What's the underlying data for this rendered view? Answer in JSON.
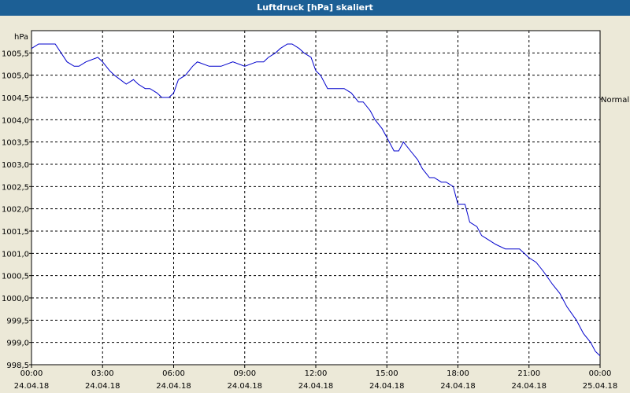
{
  "window": {
    "title": "Luftdruck [hPa] skaliert"
  },
  "colors": {
    "titlebar": "#1c5f95",
    "line": "#0000cc",
    "plot_bg": "#ffffff",
    "window_bg": "#ece9d8",
    "grid": "#000000"
  },
  "chart_data": {
    "type": "line",
    "title": "Luftdruck [hPa] skaliert",
    "ylabel": "hPa",
    "xlabel": "",
    "ylim": [
      998.5,
      1006.0
    ],
    "xlim": [
      0,
      24
    ],
    "grid": true,
    "annotation_right": "Normal",
    "y_ticks": [
      "1005,5",
      "1005,0",
      "1004,5",
      "1004,0",
      "1003,5",
      "1003,0",
      "1002,5",
      "1002,0",
      "1001,5",
      "1001,0",
      "1000,5",
      "1000,0",
      "999,5",
      "999,0",
      "998,5"
    ],
    "y_tick_values": [
      1005.5,
      1005.0,
      1004.5,
      1004.0,
      1003.5,
      1003.0,
      1002.5,
      1002.0,
      1001.5,
      1001.0,
      1000.5,
      1000.0,
      999.5,
      999.0,
      998.5
    ],
    "x_ticks": [
      {
        "time": "00:00",
        "date": "24.04.18",
        "hour": 0
      },
      {
        "time": "03:00",
        "date": "24.04.18",
        "hour": 3
      },
      {
        "time": "06:00",
        "date": "24.04.18",
        "hour": 6
      },
      {
        "time": "09:00",
        "date": "24.04.18",
        "hour": 9
      },
      {
        "time": "12:00",
        "date": "24.04.18",
        "hour": 12
      },
      {
        "time": "15:00",
        "date": "24.04.18",
        "hour": 15
      },
      {
        "time": "18:00",
        "date": "24.04.18",
        "hour": 18
      },
      {
        "time": "21:00",
        "date": "24.04.18",
        "hour": 21
      },
      {
        "time": "00:00",
        "date": "25.04.18",
        "hour": 24
      }
    ],
    "x": [
      0,
      0.3,
      0.6,
      0.8,
      1.0,
      1.5,
      1.8,
      2.0,
      2.3,
      2.8,
      3.0,
      3.3,
      3.5,
      4.0,
      4.3,
      4.5,
      4.8,
      5.0,
      5.3,
      5.5,
      5.8,
      6.0,
      6.2,
      6.5,
      6.8,
      7.0,
      7.5,
      8.0,
      8.5,
      9.0,
      9.5,
      9.8,
      10.0,
      10.3,
      10.5,
      10.8,
      11.0,
      11.3,
      11.5,
      11.8,
      12.0,
      12.2,
      12.5,
      12.8,
      13.2,
      13.5,
      13.8,
      14.0,
      14.3,
      14.5,
      14.8,
      15.0,
      15.3,
      15.5,
      15.7,
      16.0,
      16.3,
      16.5,
      16.8,
      17.0,
      17.3,
      17.5,
      17.8,
      18.0,
      18.3,
      18.5,
      18.8,
      19.0,
      19.3,
      19.6,
      20.0,
      20.3,
      20.6,
      21.0,
      21.3,
      21.6,
      22.0,
      22.3,
      22.6,
      23.0,
      23.3,
      23.6,
      23.8,
      24.0
    ],
    "y": [
      1005.6,
      1005.7,
      1005.7,
      1005.7,
      1005.7,
      1005.3,
      1005.2,
      1005.2,
      1005.3,
      1005.4,
      1005.3,
      1005.1,
      1005.0,
      1004.8,
      1004.9,
      1004.8,
      1004.7,
      1004.7,
      1004.6,
      1004.5,
      1004.5,
      1004.6,
      1004.9,
      1005.0,
      1005.2,
      1005.3,
      1005.2,
      1005.2,
      1005.3,
      1005.2,
      1005.3,
      1005.3,
      1005.4,
      1005.5,
      1005.6,
      1005.7,
      1005.7,
      1005.6,
      1005.5,
      1005.4,
      1005.1,
      1005.0,
      1004.7,
      1004.7,
      1004.7,
      1004.6,
      1004.4,
      1004.4,
      1004.2,
      1004.0,
      1003.8,
      1003.6,
      1003.3,
      1003.3,
      1003.5,
      1003.3,
      1003.1,
      1002.9,
      1002.7,
      1002.7,
      1002.6,
      1002.6,
      1002.5,
      1002.1,
      1002.1,
      1001.7,
      1001.6,
      1001.4,
      1001.3,
      1001.2,
      1001.1,
      1001.1,
      1001.1,
      1000.9,
      1000.8,
      1000.6,
      1000.3,
      1000.1,
      999.8,
      999.5,
      999.2,
      999.0,
      998.8,
      998.7
    ]
  }
}
